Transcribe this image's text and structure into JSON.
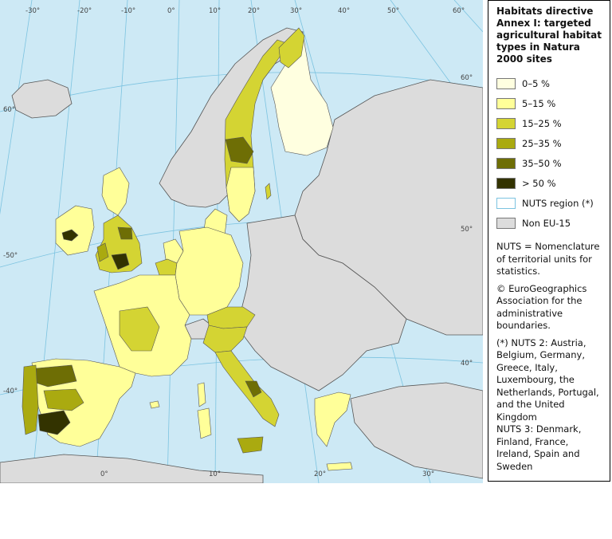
{
  "legend": {
    "title": "Habitats directive Annex I: targeted agricultural habitat types in Natura 2000 sites",
    "classes": [
      {
        "label": "0–5 %",
        "color": "#ffffe0"
      },
      {
        "label": "5–15 %",
        "color": "#ffff99"
      },
      {
        "label": "15–25 %",
        "color": "#d4d433"
      },
      {
        "label": "25–35 %",
        "color": "#aaaa10"
      },
      {
        "label": "35–50 %",
        "color": "#6e6e05"
      },
      {
        "label": "> 50 %",
        "color": "#333300"
      },
      {
        "label": "NUTS region (*)",
        "color": "#ffffff"
      },
      {
        "label": "Non EU-15",
        "color": "#dcdcdc"
      }
    ],
    "note_nuts": "NUTS = Nomenclature of territorial units for statistics.",
    "note_copyright": "© EuroGeographics Association for the administrative boundaries.",
    "note_nuts2": "(*) NUTS 2: Austria, Belgium, Germany, Greece, Italy, Luxembourg, the Netherlands, Portugal, and the United Kingdom",
    "note_nuts3": "NUTS 3: Denmark, Finland, France, Ireland, Spain and Sweden"
  },
  "graticule": {
    "top": [
      "-30°",
      "-20°",
      "-10°",
      "0°",
      "10°",
      "20°",
      "30°",
      "40°",
      "50°",
      "60°"
    ],
    "left": [
      "60°",
      "-50°",
      "-40°"
    ],
    "right": [
      "60°",
      "50°",
      "40°"
    ],
    "bottom": [
      "0°",
      "10°",
      "20°",
      "30°"
    ]
  },
  "colors": {
    "sea": "#cde9f5",
    "nonEU": "#dcdcdc",
    "border": "#333333",
    "grid": "#7cc3e0"
  }
}
